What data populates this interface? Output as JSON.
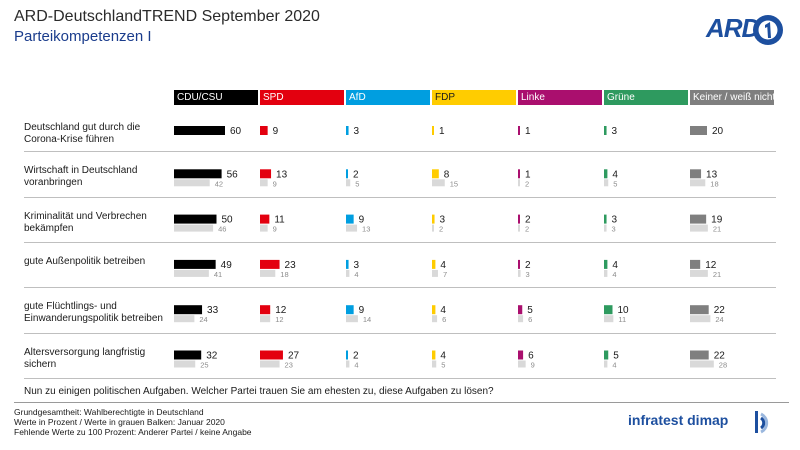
{
  "header": {
    "title": "ARD-DeutschlandTREND September 2020",
    "subtitle": "Parteikompetenzen I",
    "logo_text": "ARD"
  },
  "question": "Nun zu einigen politischen Aufgaben. Welcher Partei trauen Sie am ehesten zu, diese Aufgaben zu lösen?",
  "footer": {
    "line1": "Grundgesamtheit: Wahlberechtigte in Deutschland",
    "line2": "Werte in Prozent / Werte in grauen Balken: Januar 2020",
    "line3": "Fehlende Werte zu 100 Prozent: Anderer Partei / keine Angabe",
    "brand": "infratest dimap"
  },
  "chart_data": {
    "type": "bar",
    "parties": [
      {
        "name": "CDU/CSU",
        "color": "#000000",
        "text_color": "#ffffff"
      },
      {
        "name": "SPD",
        "color": "#e3000f",
        "text_color": "#ffffff"
      },
      {
        "name": "AfD",
        "color": "#009ee0",
        "text_color": "#ffffff"
      },
      {
        "name": "FDP",
        "color": "#ffcc00",
        "text_color": "#1a1a1a"
      },
      {
        "name": "Linke",
        "color": "#aa0f6e",
        "text_color": "#ffffff"
      },
      {
        "name": "Grüne",
        "color": "#2e9a5f",
        "text_color": "#ffffff"
      },
      {
        "name": "Keiner / weiß nicht",
        "color": "#7f7f7f",
        "text_color": "#ffffff"
      }
    ],
    "comparison_color": "#d9d9d9",
    "categories": [
      {
        "label": "Deutschland gut durch die Corona-Krise führen",
        "values": [
          60,
          9,
          3,
          1,
          1,
          3,
          20
        ],
        "previous": null
      },
      {
        "label": "Wirtschaft in Deutschland voranbringen",
        "values": [
          56,
          13,
          2,
          8,
          1,
          4,
          13
        ],
        "previous": [
          42,
          9,
          5,
          15,
          2,
          5,
          18
        ]
      },
      {
        "label": "Kriminalität und Verbrechen bekämpfen",
        "values": [
          50,
          11,
          9,
          3,
          2,
          3,
          19
        ],
        "previous": [
          46,
          9,
          13,
          2,
          2,
          3,
          21
        ]
      },
      {
        "label": "gute Außenpolitik betreiben",
        "values": [
          49,
          23,
          3,
          4,
          2,
          4,
          12
        ],
        "previous": [
          41,
          18,
          4,
          7,
          3,
          4,
          21
        ]
      },
      {
        "label": "gute Flüchtlings- und Einwanderungspolitik betreiben",
        "values": [
          33,
          12,
          9,
          4,
          5,
          10,
          22
        ],
        "previous": [
          24,
          12,
          14,
          6,
          6,
          11,
          24
        ]
      },
      {
        "label": "Altersversorgung langfristig sichern",
        "values": [
          32,
          27,
          2,
          4,
          6,
          5,
          22
        ],
        "previous": [
          25,
          23,
          4,
          5,
          9,
          4,
          28
        ]
      }
    ]
  }
}
